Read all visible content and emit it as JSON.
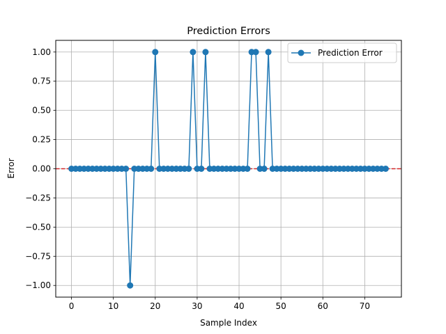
{
  "chart_data": {
    "type": "line",
    "title": "Prediction Errors",
    "xlabel": "Sample Index",
    "ylabel": "Error",
    "xlim": [
      -3.75,
      78.75
    ],
    "ylim": [
      -1.1,
      1.1
    ],
    "xticks": [
      0,
      10,
      20,
      30,
      40,
      50,
      60,
      70
    ],
    "yticks": [
      -1.0,
      -0.75,
      -0.5,
      -0.25,
      0.0,
      0.25,
      0.5,
      0.75,
      1.0
    ],
    "ytick_labels": [
      "−1.00",
      "−0.75",
      "−0.50",
      "−0.25",
      "0.00",
      "0.25",
      "0.50",
      "0.75",
      "1.00"
    ],
    "xtick_labels": [
      "0",
      "10",
      "20",
      "30",
      "40",
      "50",
      "60",
      "70"
    ],
    "grid": true,
    "legend": {
      "placement": "upper-right",
      "entries": [
        "Prediction Error"
      ]
    },
    "reference_line": {
      "y": 0,
      "style": "dashed",
      "color": "#d62728"
    },
    "series": [
      {
        "name": "Prediction Error",
        "color": "#1f77b4",
        "marker": "circle",
        "x": [
          0,
          1,
          2,
          3,
          4,
          5,
          6,
          7,
          8,
          9,
          10,
          11,
          12,
          13,
          14,
          15,
          16,
          17,
          18,
          19,
          20,
          21,
          22,
          23,
          24,
          25,
          26,
          27,
          28,
          29,
          30,
          31,
          32,
          33,
          34,
          35,
          36,
          37,
          38,
          39,
          40,
          41,
          42,
          43,
          44,
          45,
          46,
          47,
          48,
          49,
          50,
          51,
          52,
          53,
          54,
          55,
          56,
          57,
          58,
          59,
          60,
          61,
          62,
          63,
          64,
          65,
          66,
          67,
          68,
          69,
          70,
          71,
          72,
          73,
          74,
          75
        ],
        "y": [
          0,
          0,
          0,
          0,
          0,
          0,
          0,
          0,
          0,
          0,
          0,
          0,
          0,
          0,
          -1,
          0,
          0,
          0,
          0,
          0,
          1,
          0,
          0,
          0,
          0,
          0,
          0,
          0,
          0,
          1,
          0,
          0,
          1,
          0,
          0,
          0,
          0,
          0,
          0,
          0,
          0,
          0,
          0,
          1,
          1,
          0,
          0,
          1,
          0,
          0,
          0,
          0,
          0,
          0,
          0,
          0,
          0,
          0,
          0,
          0,
          0,
          0,
          0,
          0,
          0,
          0,
          0,
          0,
          0,
          0,
          0,
          0,
          0,
          0,
          0,
          0
        ]
      }
    ]
  }
}
